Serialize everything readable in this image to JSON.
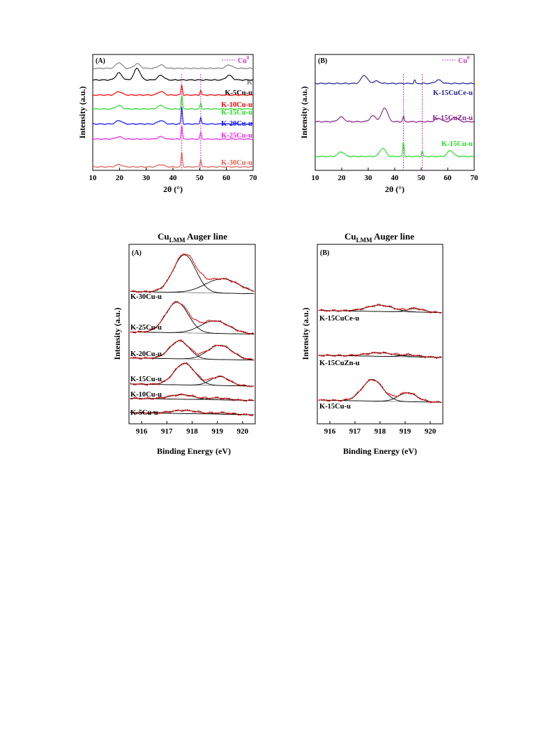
{
  "colors": {
    "cu0_marker": "#cc33cc",
    "raw_xps": "#e01010",
    "fit_xps": "#000000",
    "K": "#808080",
    "K-5Cu-u": "#000000",
    "K-10Cu-u": "#ff0000",
    "K-15Cu-u": "#22dd22",
    "K-20Cu-u": "#1010ff",
    "K-25Cu-u": "#ee22ee",
    "K-30Cu-u": "#e06050",
    "K-15CuCe-u": "#202090",
    "K-15CuZn-u": "#882288"
  },
  "chart_data": [
    {
      "type": "line",
      "panel": "(A)",
      "xlabel": "2θ (°)",
      "ylabel": "Intensity (a.u.)",
      "xlim": [
        10,
        70
      ],
      "xticks": [
        "10",
        "20",
        "30",
        "40",
        "50",
        "60",
        "70"
      ],
      "legend": {
        "label": "Cu",
        "superscript": "0",
        "position": "top-right"
      },
      "reference_lines_x": [
        43.3,
        50.4
      ],
      "series": [
        {
          "name": "K",
          "offset": 0.88,
          "peaks": [
            [
              19.8,
              0.05
            ],
            [
              26.6,
              0.04
            ],
            [
              35.5,
              0.03
            ],
            [
              61,
              0.03
            ]
          ]
        },
        {
          "name": "K-5Cu-u",
          "offset": 0.78,
          "peaks": [
            [
              19.8,
              0.06
            ],
            [
              26.6,
              0.1
            ],
            [
              35.5,
              0.04
            ],
            [
              61,
              0.04
            ]
          ]
        },
        {
          "name": "K-10Cu-u",
          "offset": 0.65,
          "peaks": [
            [
              19.8,
              0.03
            ],
            [
              35.5,
              0.03
            ],
            [
              43.3,
              0.09
            ],
            [
              50.4,
              0.04
            ]
          ]
        },
        {
          "name": "K-15Cu-u",
          "offset": 0.53,
          "peaks": [
            [
              19.8,
              0.03
            ],
            [
              35.5,
              0.03
            ],
            [
              43.3,
              0.12
            ],
            [
              50.4,
              0.05
            ]
          ]
        },
        {
          "name": "K-20Cu-u",
          "offset": 0.4,
          "peaks": [
            [
              19.8,
              0.03
            ],
            [
              35.5,
              0.03
            ],
            [
              43.3,
              0.15
            ],
            [
              50.4,
              0.06
            ]
          ]
        },
        {
          "name": "K-25Cu-u",
          "offset": 0.27,
          "peaks": [
            [
              19.8,
              0.02
            ],
            [
              35.5,
              0.02
            ],
            [
              43.3,
              0.12
            ],
            [
              50.4,
              0.06
            ]
          ]
        },
        {
          "name": "K-30Cu-u",
          "offset": 0.03,
          "peaks": [
            [
              19.8,
              0.02
            ],
            [
              35.5,
              0.02
            ],
            [
              43.3,
              0.13
            ],
            [
              50.4,
              0.07
            ]
          ]
        }
      ]
    },
    {
      "type": "line",
      "panel": "(B)",
      "xlabel": "2θ (°)",
      "ylabel": "Intensity (a.u.)",
      "xlim": [
        10,
        70
      ],
      "xticks": [
        "10",
        "20",
        "30",
        "40",
        "50",
        "60",
        "70"
      ],
      "legend": {
        "label": "Cu",
        "superscript": "0",
        "position": "top-right"
      },
      "reference_lines_x": [
        43.3,
        50.4
      ],
      "series": [
        {
          "name": "K-15CuCe-u",
          "offset": 0.75,
          "peaks": [
            [
              28.5,
              0.07
            ],
            [
              33,
              0.02
            ],
            [
              47.5,
              0.03
            ],
            [
              56.5,
              0.03
            ]
          ]
        },
        {
          "name": "K-15CuZn-u",
          "offset": 0.42,
          "peaks": [
            [
              19.8,
              0.04
            ],
            [
              31.8,
              0.05
            ],
            [
              36.2,
              0.12
            ],
            [
              43.3,
              0.05
            ],
            [
              56.5,
              0.03
            ],
            [
              62.8,
              0.04
            ]
          ]
        },
        {
          "name": "K-15Cu-u",
          "offset": 0.12,
          "peaks": [
            [
              19.8,
              0.04
            ],
            [
              35.5,
              0.07
            ],
            [
              43.3,
              0.13
            ],
            [
              50.4,
              0.05
            ],
            [
              61,
              0.05
            ]
          ]
        }
      ]
    },
    {
      "type": "line",
      "panel": "(A)",
      "title": "Cu",
      "title_sub": "LMM",
      "title_rest": " Auger line",
      "xlabel": "Binding Energy (eV)",
      "ylabel": "Intensity (a.u.)",
      "xlim": [
        915.5,
        920.5
      ],
      "xticks": [
        "916",
        "917",
        "918",
        "919",
        "920"
      ],
      "series": [
        {
          "name": "K-30Cu-u",
          "offset": 0.725,
          "components": [
            [
              917.7,
              0.63,
              0.21
            ],
            [
              919.2,
              0.95,
              0.08
            ]
          ]
        },
        {
          "name": "K-25Cu-u",
          "offset": 0.5,
          "components": [
            [
              917.4,
              0.63,
              0.17
            ],
            [
              918.9,
              0.8,
              0.07
            ]
          ]
        },
        {
          "name": "K-20Cu-u",
          "offset": 0.355,
          "components": [
            [
              917.5,
              0.55,
              0.1
            ],
            [
              919.1,
              0.68,
              0.08
            ]
          ]
        },
        {
          "name": "K-15Cu-u",
          "offset": 0.21,
          "components": [
            [
              917.7,
              0.58,
              0.12
            ],
            [
              919.1,
              0.52,
              0.05
            ]
          ]
        },
        {
          "name": "K-10Cu-u",
          "offset": 0.13,
          "components": [
            [
              917.6,
              0.7,
              0.025
            ],
            [
              919.0,
              0.6,
              0.01
            ]
          ]
        },
        {
          "name": "K-5Cu-u",
          "offset": 0.05,
          "components": [
            [
              917.7,
              0.75,
              0.018
            ],
            [
              919.2,
              0.55,
              0.008
            ]
          ]
        }
      ]
    },
    {
      "type": "line",
      "panel": "(B)",
      "title": "Cu",
      "title_sub": "LMM",
      "title_rest": " Auger line",
      "xlabel": "Binding Energy (eV)",
      "ylabel": "Intensity (a.u.)",
      "xlim": [
        915.5,
        920.5
      ],
      "xticks": [
        "916",
        "917",
        "918",
        "919",
        "920"
      ],
      "series": [
        {
          "name": "K-15CuCe-u",
          "offset": 0.62,
          "components": [
            [
              918.0,
              0.75,
              0.035
            ],
            [
              919.4,
              0.45,
              0.02
            ]
          ]
        },
        {
          "name": "K-15CuZn-u",
          "offset": 0.37,
          "components": [
            [
              918.0,
              0.8,
              0.02
            ],
            [
              919.2,
              0.5,
              0.01
            ]
          ]
        },
        {
          "name": "K-15Cu-u",
          "offset": 0.12,
          "components": [
            [
              917.7,
              0.58,
              0.12
            ],
            [
              919.1,
              0.52,
              0.05
            ]
          ]
        }
      ]
    }
  ]
}
